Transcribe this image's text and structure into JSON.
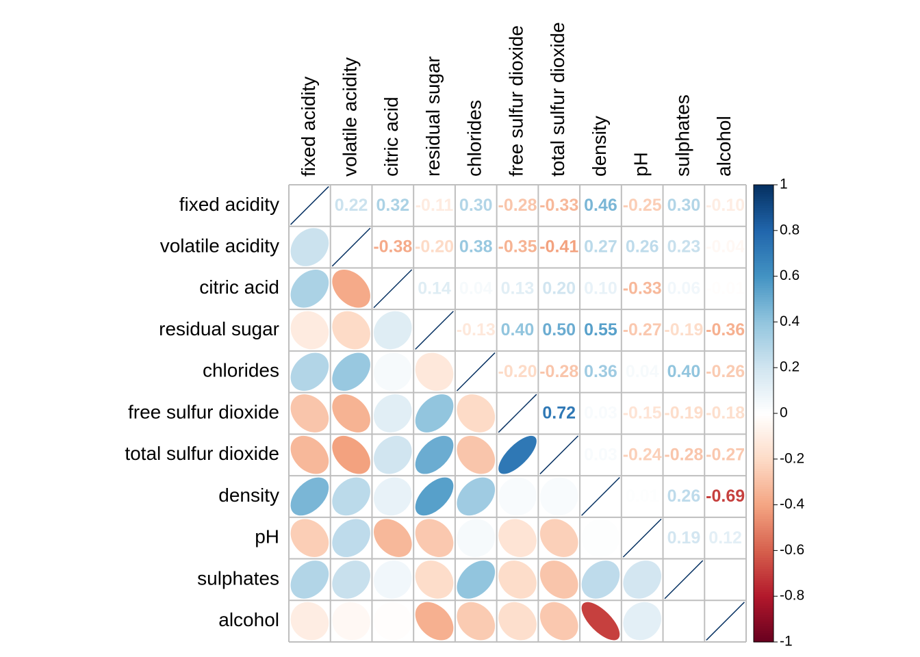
{
  "chart_data": {
    "type": "corrplot",
    "variables": [
      "fixed acidity",
      "volatile acidity",
      "citric acid",
      "residual sugar",
      "chlorides",
      "free sulfur dioxide",
      "total sulfur dioxide",
      "density",
      "pH",
      "sulphates",
      "alcohol"
    ],
    "values": [
      [
        1,
        0.22,
        0.32,
        -0.11,
        0.3,
        -0.28,
        -0.33,
        0.46,
        -0.25,
        0.3,
        -0.1
      ],
      [
        0.22,
        1,
        -0.38,
        -0.2,
        0.38,
        -0.35,
        -0.41,
        0.27,
        0.26,
        0.23,
        -0.04
      ],
      [
        0.32,
        -0.38,
        1,
        0.14,
        0.04,
        0.13,
        0.2,
        0.1,
        -0.33,
        0.06,
        -0.01
      ],
      [
        -0.11,
        -0.2,
        0.14,
        1,
        -0.13,
        0.4,
        0.5,
        0.55,
        -0.27,
        -0.19,
        -0.36
      ],
      [
        0.3,
        0.38,
        0.04,
        -0.13,
        1,
        -0.2,
        -0.28,
        0.36,
        0.04,
        0.4,
        -0.26
      ],
      [
        -0.28,
        -0.35,
        0.13,
        0.4,
        -0.2,
        1,
        0.72,
        0.03,
        -0.15,
        -0.19,
        -0.18
      ],
      [
        -0.33,
        -0.41,
        0.2,
        0.5,
        -0.28,
        0.72,
        1,
        0.03,
        -0.24,
        -0.28,
        -0.27
      ],
      [
        0.46,
        0.27,
        0.1,
        0.55,
        0.36,
        0.03,
        0.03,
        1,
        0.01,
        0.26,
        -0.69
      ],
      [
        -0.25,
        0.26,
        -0.33,
        -0.27,
        0.04,
        -0.15,
        -0.24,
        0.01,
        1,
        0.19,
        0.12
      ],
      [
        0.3,
        0.23,
        0.06,
        -0.19,
        0.4,
        -0.19,
        -0.28,
        0.26,
        0.19,
        1,
        0
      ],
      [
        -0.1,
        -0.04,
        -0.01,
        -0.36,
        -0.26,
        -0.18,
        -0.27,
        -0.69,
        0.12,
        0,
        1
      ]
    ],
    "value_labels": [
      [
        null,
        "0.22",
        "0.32",
        "-0.11",
        "0.30",
        "-0.28",
        "-0.33",
        "0.46",
        "-0.25",
        "0.30",
        "-0.10"
      ],
      [
        null,
        null,
        "-0.38",
        "-0.20",
        "0.38",
        "-0.35",
        "-0.41",
        "0.27",
        "0.26",
        "0.23",
        "-0.04"
      ],
      [
        null,
        null,
        null,
        "0.14",
        "0.04",
        "0.13",
        "0.20",
        "0.10",
        "-0.33",
        "0.06",
        "-0.01"
      ],
      [
        null,
        null,
        null,
        null,
        "-0.13",
        "0.40",
        "0.50",
        "0.55",
        "-0.27",
        "-0.19",
        "-0.36"
      ],
      [
        null,
        null,
        null,
        null,
        null,
        "-0.20",
        "-0.28",
        "0.36",
        "0.04",
        "0.40",
        "-0.26"
      ],
      [
        null,
        null,
        null,
        null,
        null,
        null,
        "0.72",
        "0.03",
        "-0.15",
        "-0.19",
        "-0.18"
      ],
      [
        null,
        null,
        null,
        null,
        null,
        null,
        null,
        "0.03",
        "-0.24",
        "-0.28",
        "-0.27"
      ],
      [
        null,
        null,
        null,
        null,
        null,
        null,
        null,
        null,
        "0.01",
        "0.26",
        "-0.69"
      ],
      [
        null,
        null,
        null,
        null,
        null,
        null,
        null,
        null,
        null,
        "0.19",
        "0.12"
      ],
      [
        null,
        null,
        null,
        null,
        null,
        null,
        null,
        null,
        null,
        null,
        "0.00"
      ],
      [
        null,
        null,
        null,
        null,
        null,
        null,
        null,
        null,
        null,
        null,
        null
      ]
    ],
    "clim": [
      -1,
      1
    ],
    "colorbar_ticks": [
      1,
      0.8,
      0.6,
      0.4,
      0.2,
      0,
      -0.2,
      -0.4,
      -0.6,
      -0.8,
      -1
    ],
    "colors": [
      "#67001F",
      "#B2182B",
      "#D6604D",
      "#F4A582",
      "#FDDBC7",
      "#FFFFFF",
      "#D1E5F0",
      "#92C5DE",
      "#4393C3",
      "#2166AC",
      "#053061"
    ]
  }
}
